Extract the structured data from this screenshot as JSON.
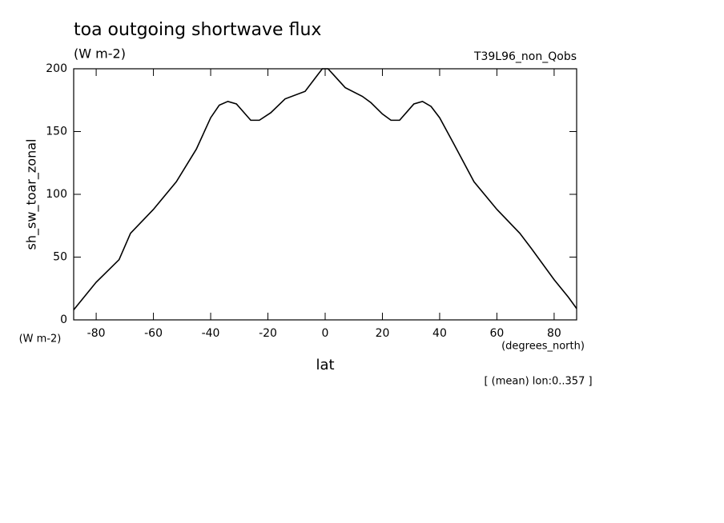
{
  "chart_data": {
    "type": "line",
    "title": "toa outgoing shortwave flux",
    "subtitle": "(W m-2)",
    "dataset": "T39L96_non_Qobs",
    "y_label": "sh_sw_toar_zonal",
    "y_units": "(W m-2)",
    "x_label": "lat",
    "x_units": "(degrees_north)",
    "note": "[ (mean) lon:0..357 ]",
    "color": "#000000",
    "x": [
      -87.86,
      -85,
      -80,
      -72,
      -68,
      -60,
      -52,
      -45,
      -40,
      -37,
      -34,
      -31,
      -26,
      -23,
      -19,
      -14,
      -7,
      -3,
      -1,
      1,
      3,
      7,
      13,
      16,
      20,
      23,
      26,
      31,
      34,
      37,
      40,
      45,
      52,
      60,
      68,
      72,
      80,
      85,
      87.86
    ],
    "values": [
      8,
      16,
      30,
      48,
      69,
      88,
      110,
      136,
      161,
      171,
      174,
      172,
      159,
      159,
      165,
      176,
      182,
      194,
      200,
      200,
      195,
      185,
      178,
      173,
      164,
      159,
      159,
      172,
      174,
      170,
      161,
      140,
      110,
      88,
      69,
      57,
      32,
      18,
      9
    ],
    "xlim": [
      -87.86,
      87.86
    ],
    "ylim": [
      0,
      200
    ],
    "xticks": [
      -80,
      -60,
      -40,
      -20,
      0,
      20,
      40,
      60,
      80
    ],
    "yticks": [
      0,
      50,
      100,
      150,
      200
    ]
  }
}
